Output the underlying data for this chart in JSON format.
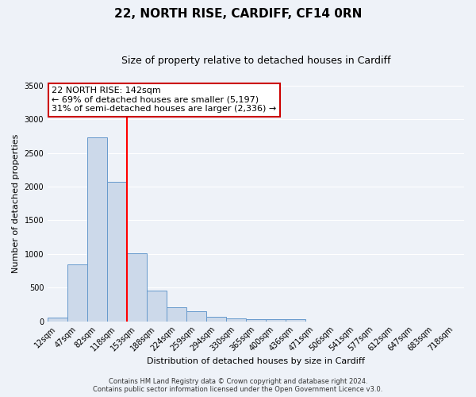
{
  "title": "22, NORTH RISE, CARDIFF, CF14 0RN",
  "subtitle": "Size of property relative to detached houses in Cardiff",
  "xlabel": "Distribution of detached houses by size in Cardiff",
  "ylabel": "Number of detached properties",
  "bar_color": "#ccd9ea",
  "bar_edge_color": "#6699cc",
  "categories": [
    "12sqm",
    "47sqm",
    "82sqm",
    "118sqm",
    "153sqm",
    "188sqm",
    "224sqm",
    "259sqm",
    "294sqm",
    "330sqm",
    "365sqm",
    "400sqm",
    "436sqm",
    "471sqm",
    "506sqm",
    "541sqm",
    "577sqm",
    "612sqm",
    "647sqm",
    "683sqm",
    "718sqm"
  ],
  "values": [
    55,
    850,
    2730,
    2070,
    1005,
    455,
    210,
    145,
    60,
    40,
    25,
    25,
    25,
    0,
    0,
    0,
    0,
    0,
    0,
    0,
    0
  ],
  "ylim": [
    0,
    3500
  ],
  "yticks": [
    0,
    500,
    1000,
    1500,
    2000,
    2500,
    3000,
    3500
  ],
  "vline_x_index": 3.5,
  "vline_color": "red",
  "annotation_title": "22 NORTH RISE: 142sqm",
  "annotation_line1": "← 69% of detached houses are smaller (5,197)",
  "annotation_line2": "31% of semi-detached houses are larger (2,336) →",
  "annotation_box_color": "#ffffff",
  "annotation_box_edge_color": "#cc0000",
  "footer_line1": "Contains HM Land Registry data © Crown copyright and database right 2024.",
  "footer_line2": "Contains public sector information licensed under the Open Government Licence v3.0.",
  "background_color": "#eef2f8",
  "grid_color": "#ffffff",
  "title_fontsize": 11,
  "subtitle_fontsize": 9,
  "tick_fontsize": 7,
  "axis_label_fontsize": 8,
  "annotation_fontsize": 8,
  "footer_fontsize": 6
}
